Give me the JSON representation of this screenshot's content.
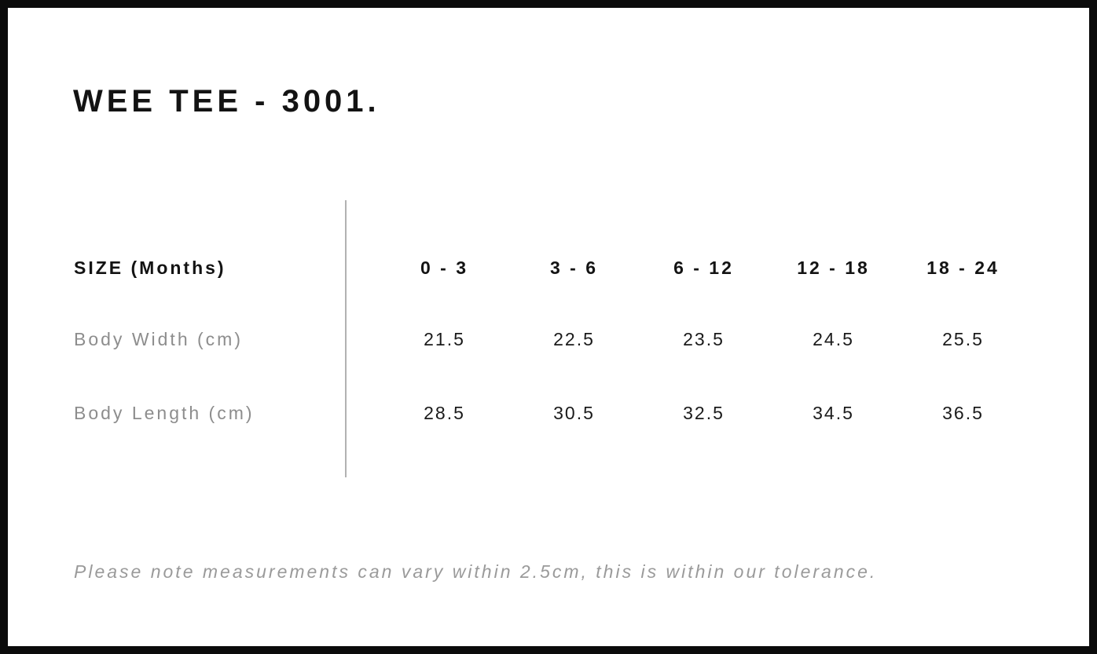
{
  "page": {
    "title": "WEE TEE - 3001.",
    "note": "Please note measurements can vary within 2.5cm, this is within our tolerance."
  },
  "size_chart": {
    "header_label": "SIZE (Months)",
    "columns": [
      "0 - 3",
      "3 - 6",
      "6 - 12",
      "12 - 18",
      "18 - 24"
    ],
    "rows": [
      {
        "label": "Body Width (cm)",
        "values": [
          "21.5",
          "22.5",
          "23.5",
          "24.5",
          "25.5"
        ]
      },
      {
        "label": "Body Length (cm)",
        "values": [
          "28.5",
          "30.5",
          "32.5",
          "34.5",
          "36.5"
        ]
      }
    ]
  },
  "colors": {
    "frame": "#0b0b0b",
    "text": "#131313",
    "muted_label": "#8d8d8d",
    "note_text": "#9a9a9a",
    "divider": "#b2b2b2",
    "background": "#ffffff"
  }
}
